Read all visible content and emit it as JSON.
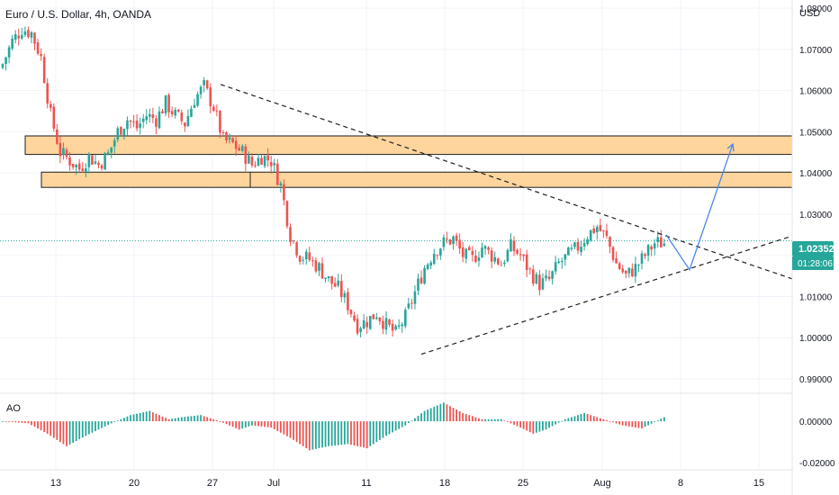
{
  "chart_title": "Euro / U.S. Dollar, 4h, OANDA",
  "currency": "USD",
  "colors": {
    "up": "#26a69a",
    "down": "#ef5350",
    "zone_fill": "#ffd59e",
    "zone_stroke": "#1e1e1e",
    "trendline": "#1e1e1e",
    "projection": "#4a86e8",
    "price_line": "#26a69a",
    "grid": "#f0f3fa",
    "axis_text": "#131722"
  },
  "current_price": {
    "value": "1.02352",
    "countdown": "01:28:06"
  },
  "chart_data": [
    {
      "type": "candlestick",
      "title": "Euro / U.S. Dollar, 4h, OANDA",
      "y_unit": "USD",
      "ylim": [
        0.9865,
        1.082
      ],
      "y_ticks": [
        "1.08000",
        "1.07000",
        "1.06000",
        "1.05000",
        "1.04000",
        "1.03000",
        "1.02000",
        "1.01000",
        "1.00000",
        "0.99000"
      ],
      "x_ticks": [
        "13",
        "20",
        "27",
        "Jul",
        "11",
        "18",
        "25",
        "Aug",
        "8",
        "15"
      ],
      "grid": true,
      "path_close": [
        [
          0,
          1.0665
        ],
        [
          3,
          1.072
        ],
        [
          6,
          1.075
        ],
        [
          9,
          1.074
        ],
        [
          12,
          1.068
        ],
        [
          15,
          1.054
        ],
        [
          18,
          1.045
        ],
        [
          21,
          1.043
        ],
        [
          24,
          1.041
        ],
        [
          27,
          1.044
        ],
        [
          30,
          1.042
        ],
        [
          33,
          1.0445
        ],
        [
          36,
          1.05
        ],
        [
          39,
          1.053
        ],
        [
          42,
          1.051
        ],
        [
          45,
          1.054
        ],
        [
          48,
          1.053
        ],
        [
          51,
          1.057
        ],
        [
          54,
          1.054
        ],
        [
          57,
          1.052
        ],
        [
          60,
          1.058
        ],
        [
          63,
          1.061
        ],
        [
          66,
          1.056
        ],
        [
          69,
          1.048
        ],
        [
          72,
          1.047
        ],
        [
          75,
          1.045
        ],
        [
          78,
          1.042
        ],
        [
          81,
          1.044
        ],
        [
          84,
          1.043
        ],
        [
          87,
          1.037
        ],
        [
          90,
          1.025
        ],
        [
          93,
          1.02
        ],
        [
          96,
          1.019
        ],
        [
          99,
          1.017
        ],
        [
          102,
          1.014
        ],
        [
          105,
          1.012
        ],
        [
          108,
          1.008
        ],
        [
          111,
          1.003
        ],
        [
          114,
          1.004
        ],
        [
          117,
          1.006
        ],
        [
          120,
          1.003
        ],
        [
          123,
          1.001
        ],
        [
          126,
          1.005
        ],
        [
          129,
          1.011
        ],
        [
          132,
          1.017
        ],
        [
          135,
          1.021
        ],
        [
          138,
          1.023
        ],
        [
          141,
          1.024
        ],
        [
          144,
          1.02
        ],
        [
          147,
          1.019
        ],
        [
          150,
          1.022
        ],
        [
          153,
          1.02
        ],
        [
          156,
          1.018
        ],
        [
          159,
          1.022
        ],
        [
          162,
          1.02
        ],
        [
          165,
          1.016
        ],
        [
          168,
          1.013
        ],
        [
          171,
          1.014
        ],
        [
          174,
          1.018
        ],
        [
          177,
          1.02
        ],
        [
          180,
          1.022
        ],
        [
          183,
          1.025
        ],
        [
          186,
          1.027
        ],
        [
          189,
          1.024
        ],
        [
          192,
          1.018
        ],
        [
          195,
          1.015
        ],
        [
          198,
          1.017
        ],
        [
          201,
          1.02
        ],
        [
          204,
          1.023
        ],
        [
          207,
          1.023
        ]
      ],
      "n_candles": 208
    },
    {
      "type": "bar",
      "title": "AO",
      "ylim": [
        -0.0234,
        0.0135
      ],
      "y_ticks": [
        "0.00000",
        "-0.02000"
      ],
      "path": [
        [
          0,
          0.0
        ],
        [
          8,
          -0.001
        ],
        [
          14,
          -0.006
        ],
        [
          20,
          -0.012
        ],
        [
          26,
          -0.007
        ],
        [
          34,
          -0.001
        ],
        [
          40,
          0.003
        ],
        [
          46,
          0.005
        ],
        [
          52,
          0.001
        ],
        [
          56,
          0.002
        ],
        [
          62,
          0.003
        ],
        [
          68,
          0.0
        ],
        [
          74,
          -0.004
        ],
        [
          78,
          -0.002
        ],
        [
          84,
          -0.003
        ],
        [
          90,
          -0.008
        ],
        [
          96,
          -0.014
        ],
        [
          102,
          -0.012
        ],
        [
          108,
          -0.011
        ],
        [
          114,
          -0.013
        ],
        [
          120,
          -0.007
        ],
        [
          126,
          -0.002
        ],
        [
          132,
          0.005
        ],
        [
          138,
          0.009
        ],
        [
          144,
          0.004
        ],
        [
          150,
          0.001
        ],
        [
          156,
          0.001
        ],
        [
          162,
          -0.003
        ],
        [
          166,
          -0.006
        ],
        [
          170,
          -0.004
        ],
        [
          176,
          0.001
        ],
        [
          182,
          0.004
        ],
        [
          188,
          0.001
        ],
        [
          194,
          -0.002
        ],
        [
          200,
          -0.0035
        ],
        [
          207,
          0.002
        ]
      ]
    }
  ]
}
